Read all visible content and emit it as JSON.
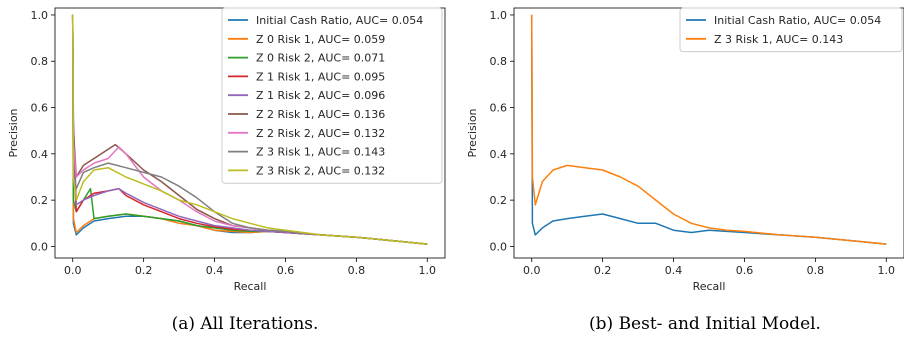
{
  "chart_data": [
    {
      "type": "line",
      "caption": "(a) All Iterations.",
      "xlabel": "Recall",
      "ylabel": "Precision",
      "xlim": [
        -0.05,
        1.05
      ],
      "ylim": [
        -0.05,
        1.03
      ],
      "xticks": [
        "0.0",
        "0.2",
        "0.4",
        "0.6",
        "0.8",
        "1.0"
      ],
      "yticks": [
        "0.0",
        "0.2",
        "0.4",
        "0.6",
        "0.8",
        "1.0"
      ],
      "legend_position": "top-right",
      "series": [
        {
          "name": "Initial Cash Ratio, AUC= 0.054",
          "color": "#1f77b4",
          "x": [
            0,
            0.002,
            0.01,
            0.03,
            0.06,
            0.1,
            0.15,
            0.2,
            0.25,
            0.3,
            0.35,
            0.4,
            0.45,
            0.5,
            0.55,
            0.6,
            0.7,
            0.8,
            0.9,
            1.0
          ],
          "y": [
            1.0,
            0.1,
            0.05,
            0.08,
            0.11,
            0.12,
            0.13,
            0.13,
            0.12,
            0.11,
            0.09,
            0.07,
            0.06,
            0.06,
            0.065,
            0.06,
            0.05,
            0.04,
            0.025,
            0.01
          ]
        },
        {
          "name": "Z 0 Risk 1, AUC= 0.059",
          "color": "#ff7f0e",
          "x": [
            0,
            0.002,
            0.01,
            0.03,
            0.06,
            0.1,
            0.15,
            0.2,
            0.25,
            0.3,
            0.35,
            0.4,
            0.45,
            0.5,
            0.55,
            0.6,
            0.7,
            0.8,
            0.9,
            1.0
          ],
          "y": [
            1.0,
            0.12,
            0.06,
            0.09,
            0.12,
            0.13,
            0.14,
            0.13,
            0.12,
            0.1,
            0.09,
            0.07,
            0.065,
            0.06,
            0.065,
            0.06,
            0.05,
            0.04,
            0.025,
            0.01
          ]
        },
        {
          "name": "Z 0 Risk 2, AUC= 0.071",
          "color": "#2ca02c",
          "x": [
            0,
            0.002,
            0.01,
            0.03,
            0.05,
            0.06,
            0.1,
            0.15,
            0.2,
            0.25,
            0.3,
            0.35,
            0.4,
            0.45,
            0.5,
            0.55,
            0.6,
            0.7,
            0.8,
            0.9,
            1.0
          ],
          "y": [
            1.0,
            0.2,
            0.15,
            0.2,
            0.25,
            0.12,
            0.13,
            0.14,
            0.13,
            0.12,
            0.11,
            0.09,
            0.08,
            0.07,
            0.065,
            0.065,
            0.06,
            0.05,
            0.04,
            0.025,
            0.01
          ]
        },
        {
          "name": "Z 1 Risk 1, AUC= 0.095",
          "color": "#d62728",
          "x": [
            0,
            0.002,
            0.01,
            0.03,
            0.06,
            0.1,
            0.13,
            0.15,
            0.2,
            0.25,
            0.3,
            0.35,
            0.4,
            0.45,
            0.5,
            0.55,
            0.6,
            0.7,
            0.8,
            0.9,
            1.0
          ],
          "y": [
            1.0,
            0.4,
            0.15,
            0.2,
            0.23,
            0.24,
            0.25,
            0.22,
            0.18,
            0.15,
            0.12,
            0.1,
            0.085,
            0.075,
            0.07,
            0.065,
            0.06,
            0.05,
            0.04,
            0.025,
            0.01
          ]
        },
        {
          "name": "Z 1 Risk 2, AUC= 0.096",
          "color": "#9467bd",
          "x": [
            0,
            0.002,
            0.01,
            0.03,
            0.06,
            0.1,
            0.13,
            0.15,
            0.2,
            0.25,
            0.3,
            0.35,
            0.4,
            0.45,
            0.5,
            0.55,
            0.6,
            0.7,
            0.8,
            0.9,
            1.0
          ],
          "y": [
            1.0,
            0.55,
            0.18,
            0.2,
            0.22,
            0.24,
            0.25,
            0.23,
            0.19,
            0.16,
            0.13,
            0.11,
            0.09,
            0.08,
            0.07,
            0.065,
            0.06,
            0.05,
            0.04,
            0.025,
            0.01
          ]
        },
        {
          "name": "Z 2 Risk 1, AUC= 0.136",
          "color": "#8c564b",
          "x": [
            0,
            0.002,
            0.01,
            0.03,
            0.06,
            0.1,
            0.12,
            0.15,
            0.2,
            0.25,
            0.3,
            0.35,
            0.4,
            0.45,
            0.5,
            0.55,
            0.6,
            0.7,
            0.8,
            0.9,
            1.0
          ],
          "y": [
            1.0,
            0.5,
            0.3,
            0.35,
            0.38,
            0.42,
            0.44,
            0.4,
            0.33,
            0.28,
            0.22,
            0.16,
            0.12,
            0.09,
            0.08,
            0.07,
            0.065,
            0.05,
            0.04,
            0.025,
            0.01
          ]
        },
        {
          "name": "Z 2 Risk 2, AUC= 0.132",
          "color": "#e377c2",
          "x": [
            0,
            0.002,
            0.01,
            0.03,
            0.06,
            0.1,
            0.13,
            0.15,
            0.2,
            0.25,
            0.3,
            0.35,
            0.4,
            0.45,
            0.5,
            0.55,
            0.6,
            0.7,
            0.8,
            0.9,
            1.0
          ],
          "y": [
            1.0,
            0.45,
            0.3,
            0.33,
            0.36,
            0.38,
            0.43,
            0.4,
            0.3,
            0.24,
            0.2,
            0.15,
            0.11,
            0.09,
            0.08,
            0.07,
            0.065,
            0.05,
            0.04,
            0.025,
            0.01
          ]
        },
        {
          "name": "Z 3 Risk 1, AUC= 0.143",
          "color": "#7f7f7f",
          "x": [
            0,
            0.002,
            0.01,
            0.03,
            0.06,
            0.1,
            0.15,
            0.2,
            0.25,
            0.3,
            0.35,
            0.4,
            0.45,
            0.5,
            0.55,
            0.6,
            0.7,
            0.8,
            0.9,
            1.0
          ],
          "y": [
            1.0,
            0.3,
            0.25,
            0.32,
            0.34,
            0.36,
            0.34,
            0.32,
            0.3,
            0.26,
            0.21,
            0.15,
            0.1,
            0.08,
            0.07,
            0.065,
            0.05,
            0.04,
            0.025,
            0.01
          ]
        },
        {
          "name": "Z 3 Risk 2, AUC= 0.132",
          "color": "#bcbd22",
          "x": [
            0,
            0.002,
            0.01,
            0.03,
            0.06,
            0.1,
            0.15,
            0.2,
            0.25,
            0.3,
            0.35,
            0.4,
            0.45,
            0.5,
            0.55,
            0.6,
            0.7,
            0.8,
            0.9,
            1.0
          ],
          "y": [
            1.0,
            0.3,
            0.2,
            0.28,
            0.33,
            0.34,
            0.3,
            0.27,
            0.24,
            0.2,
            0.18,
            0.15,
            0.12,
            0.1,
            0.08,
            0.07,
            0.05,
            0.04,
            0.025,
            0.01
          ]
        }
      ]
    },
    {
      "type": "line",
      "caption": "(b) Best- and Initial Model.",
      "xlabel": "Recall",
      "ylabel": "Precision",
      "xlim": [
        -0.05,
        1.05
      ],
      "ylim": [
        -0.05,
        1.03
      ],
      "xticks": [
        "0.0",
        "0.2",
        "0.4",
        "0.6",
        "0.8",
        "1.0"
      ],
      "yticks": [
        "0.0",
        "0.2",
        "0.4",
        "0.6",
        "0.8",
        "1.0"
      ],
      "legend_position": "top-right",
      "series": [
        {
          "name": "Initial Cash Ratio, AUC= 0.054",
          "color": "#1f77b4",
          "x": [
            0,
            0.002,
            0.01,
            0.03,
            0.06,
            0.1,
            0.15,
            0.2,
            0.25,
            0.3,
            0.35,
            0.4,
            0.45,
            0.5,
            0.55,
            0.6,
            0.7,
            0.8,
            0.9,
            1.0
          ],
          "y": [
            1.0,
            0.1,
            0.05,
            0.08,
            0.11,
            0.12,
            0.13,
            0.14,
            0.12,
            0.1,
            0.1,
            0.07,
            0.06,
            0.07,
            0.065,
            0.06,
            0.05,
            0.04,
            0.025,
            0.01
          ]
        },
        {
          "name": "Z 3 Risk 1, AUC= 0.143",
          "color": "#ff7f0e",
          "x": [
            0,
            0.002,
            0.01,
            0.03,
            0.06,
            0.1,
            0.15,
            0.2,
            0.25,
            0.3,
            0.35,
            0.4,
            0.45,
            0.5,
            0.55,
            0.6,
            0.7,
            0.8,
            0.9,
            1.0
          ],
          "y": [
            1.0,
            0.3,
            0.18,
            0.28,
            0.33,
            0.35,
            0.34,
            0.33,
            0.3,
            0.26,
            0.2,
            0.14,
            0.1,
            0.08,
            0.07,
            0.065,
            0.05,
            0.04,
            0.025,
            0.01
          ]
        }
      ]
    }
  ]
}
